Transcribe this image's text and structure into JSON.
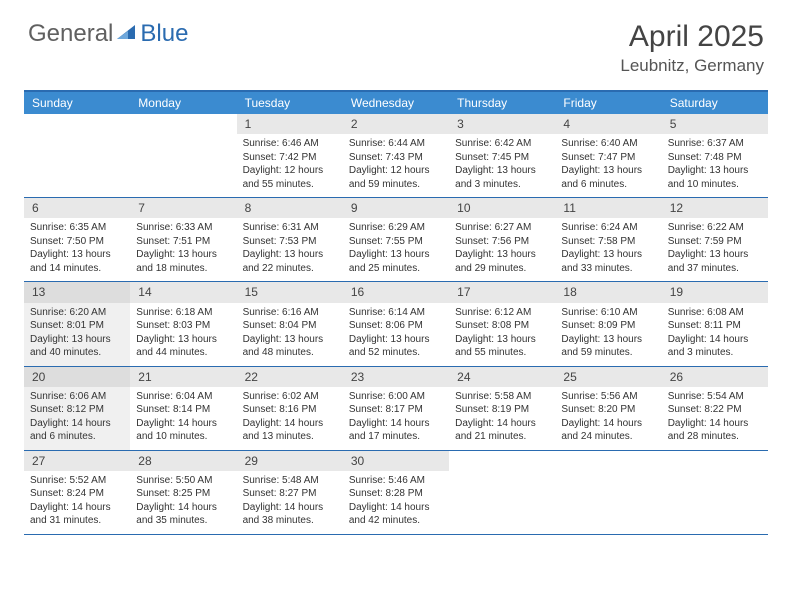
{
  "logo": {
    "text1": "General",
    "text2": "Blue"
  },
  "title": "April 2025",
  "location": "Leubnitz, Germany",
  "weekdays": [
    "Sunday",
    "Monday",
    "Tuesday",
    "Wednesday",
    "Thursday",
    "Friday",
    "Saturday"
  ],
  "colors": {
    "header_bar": "#3b8bd0",
    "border": "#2a6bb0",
    "daynum_bg": "#e8e8e8",
    "shaded_bg": "#f0f0f0",
    "text": "#333333"
  },
  "weeks": [
    [
      {
        "n": "",
        "sr": "",
        "ss": "",
        "dl": ""
      },
      {
        "n": "",
        "sr": "",
        "ss": "",
        "dl": ""
      },
      {
        "n": "1",
        "sr": "Sunrise: 6:46 AM",
        "ss": "Sunset: 7:42 PM",
        "dl": "Daylight: 12 hours and 55 minutes."
      },
      {
        "n": "2",
        "sr": "Sunrise: 6:44 AM",
        "ss": "Sunset: 7:43 PM",
        "dl": "Daylight: 12 hours and 59 minutes."
      },
      {
        "n": "3",
        "sr": "Sunrise: 6:42 AM",
        "ss": "Sunset: 7:45 PM",
        "dl": "Daylight: 13 hours and 3 minutes."
      },
      {
        "n": "4",
        "sr": "Sunrise: 6:40 AM",
        "ss": "Sunset: 7:47 PM",
        "dl": "Daylight: 13 hours and 6 minutes."
      },
      {
        "n": "5",
        "sr": "Sunrise: 6:37 AM",
        "ss": "Sunset: 7:48 PM",
        "dl": "Daylight: 13 hours and 10 minutes."
      }
    ],
    [
      {
        "n": "6",
        "sr": "Sunrise: 6:35 AM",
        "ss": "Sunset: 7:50 PM",
        "dl": "Daylight: 13 hours and 14 minutes."
      },
      {
        "n": "7",
        "sr": "Sunrise: 6:33 AM",
        "ss": "Sunset: 7:51 PM",
        "dl": "Daylight: 13 hours and 18 minutes."
      },
      {
        "n": "8",
        "sr": "Sunrise: 6:31 AM",
        "ss": "Sunset: 7:53 PM",
        "dl": "Daylight: 13 hours and 22 minutes."
      },
      {
        "n": "9",
        "sr": "Sunrise: 6:29 AM",
        "ss": "Sunset: 7:55 PM",
        "dl": "Daylight: 13 hours and 25 minutes."
      },
      {
        "n": "10",
        "sr": "Sunrise: 6:27 AM",
        "ss": "Sunset: 7:56 PM",
        "dl": "Daylight: 13 hours and 29 minutes."
      },
      {
        "n": "11",
        "sr": "Sunrise: 6:24 AM",
        "ss": "Sunset: 7:58 PM",
        "dl": "Daylight: 13 hours and 33 minutes."
      },
      {
        "n": "12",
        "sr": "Sunrise: 6:22 AM",
        "ss": "Sunset: 7:59 PM",
        "dl": "Daylight: 13 hours and 37 minutes."
      }
    ],
    [
      {
        "n": "13",
        "sr": "Sunrise: 6:20 AM",
        "ss": "Sunset: 8:01 PM",
        "dl": "Daylight: 13 hours and 40 minutes.",
        "shaded": true
      },
      {
        "n": "14",
        "sr": "Sunrise: 6:18 AM",
        "ss": "Sunset: 8:03 PM",
        "dl": "Daylight: 13 hours and 44 minutes."
      },
      {
        "n": "15",
        "sr": "Sunrise: 6:16 AM",
        "ss": "Sunset: 8:04 PM",
        "dl": "Daylight: 13 hours and 48 minutes."
      },
      {
        "n": "16",
        "sr": "Sunrise: 6:14 AM",
        "ss": "Sunset: 8:06 PM",
        "dl": "Daylight: 13 hours and 52 minutes."
      },
      {
        "n": "17",
        "sr": "Sunrise: 6:12 AM",
        "ss": "Sunset: 8:08 PM",
        "dl": "Daylight: 13 hours and 55 minutes."
      },
      {
        "n": "18",
        "sr": "Sunrise: 6:10 AM",
        "ss": "Sunset: 8:09 PM",
        "dl": "Daylight: 13 hours and 59 minutes."
      },
      {
        "n": "19",
        "sr": "Sunrise: 6:08 AM",
        "ss": "Sunset: 8:11 PM",
        "dl": "Daylight: 14 hours and 3 minutes."
      }
    ],
    [
      {
        "n": "20",
        "sr": "Sunrise: 6:06 AM",
        "ss": "Sunset: 8:12 PM",
        "dl": "Daylight: 14 hours and 6 minutes.",
        "shaded": true
      },
      {
        "n": "21",
        "sr": "Sunrise: 6:04 AM",
        "ss": "Sunset: 8:14 PM",
        "dl": "Daylight: 14 hours and 10 minutes."
      },
      {
        "n": "22",
        "sr": "Sunrise: 6:02 AM",
        "ss": "Sunset: 8:16 PM",
        "dl": "Daylight: 14 hours and 13 minutes."
      },
      {
        "n": "23",
        "sr": "Sunrise: 6:00 AM",
        "ss": "Sunset: 8:17 PM",
        "dl": "Daylight: 14 hours and 17 minutes."
      },
      {
        "n": "24",
        "sr": "Sunrise: 5:58 AM",
        "ss": "Sunset: 8:19 PM",
        "dl": "Daylight: 14 hours and 21 minutes."
      },
      {
        "n": "25",
        "sr": "Sunrise: 5:56 AM",
        "ss": "Sunset: 8:20 PM",
        "dl": "Daylight: 14 hours and 24 minutes."
      },
      {
        "n": "26",
        "sr": "Sunrise: 5:54 AM",
        "ss": "Sunset: 8:22 PM",
        "dl": "Daylight: 14 hours and 28 minutes."
      }
    ],
    [
      {
        "n": "27",
        "sr": "Sunrise: 5:52 AM",
        "ss": "Sunset: 8:24 PM",
        "dl": "Daylight: 14 hours and 31 minutes."
      },
      {
        "n": "28",
        "sr": "Sunrise: 5:50 AM",
        "ss": "Sunset: 8:25 PM",
        "dl": "Daylight: 14 hours and 35 minutes."
      },
      {
        "n": "29",
        "sr": "Sunrise: 5:48 AM",
        "ss": "Sunset: 8:27 PM",
        "dl": "Daylight: 14 hours and 38 minutes."
      },
      {
        "n": "30",
        "sr": "Sunrise: 5:46 AM",
        "ss": "Sunset: 8:28 PM",
        "dl": "Daylight: 14 hours and 42 minutes."
      },
      {
        "n": "",
        "sr": "",
        "ss": "",
        "dl": ""
      },
      {
        "n": "",
        "sr": "",
        "ss": "",
        "dl": ""
      },
      {
        "n": "",
        "sr": "",
        "ss": "",
        "dl": ""
      }
    ]
  ]
}
